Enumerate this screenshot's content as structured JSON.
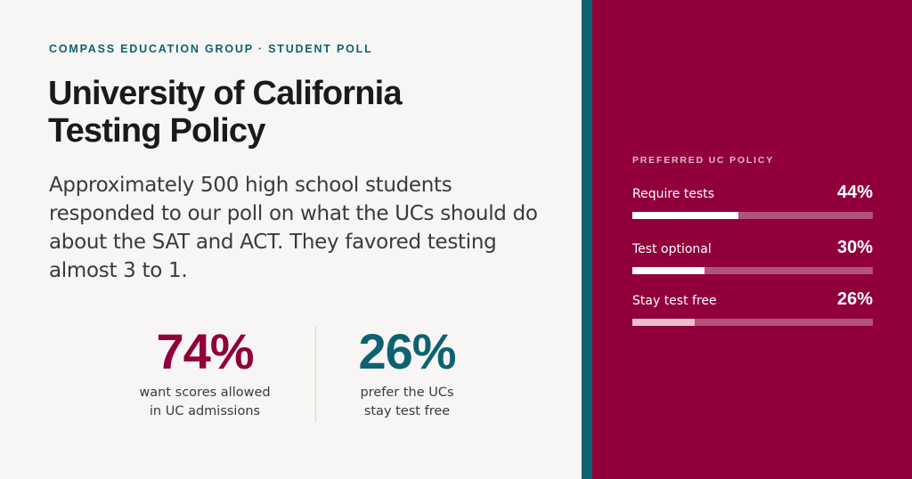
{
  "eyebrow": "COMPASS EDUCATION GROUP · STUDENT POLL",
  "title_line1": "University of California",
  "title_line2": "Testing Policy",
  "body": "Approximately 500 high school students responded to our poll on what the UCs should do about the SAT and ACT. They favored testing almost 3 to 1.",
  "stats": [
    {
      "value": "74%",
      "caption_line1": "want scores allowed",
      "caption_line2": "in UC admissions"
    },
    {
      "value": "26%",
      "caption_line1": "prefer the UCs",
      "caption_line2": "stay test free"
    }
  ],
  "panel_label": "PREFERRED UC POLICY",
  "bars": [
    {
      "label": "Require tests",
      "value_text": "44%",
      "value": 44
    },
    {
      "label": "Test optional",
      "value_text": "30%",
      "value": 30
    },
    {
      "label": "Stay test free",
      "value_text": "26%",
      "value": 26
    }
  ],
  "colors": {
    "crimson": "#91003a",
    "teal": "#0e6170",
    "background": "#f7f6f4"
  }
}
